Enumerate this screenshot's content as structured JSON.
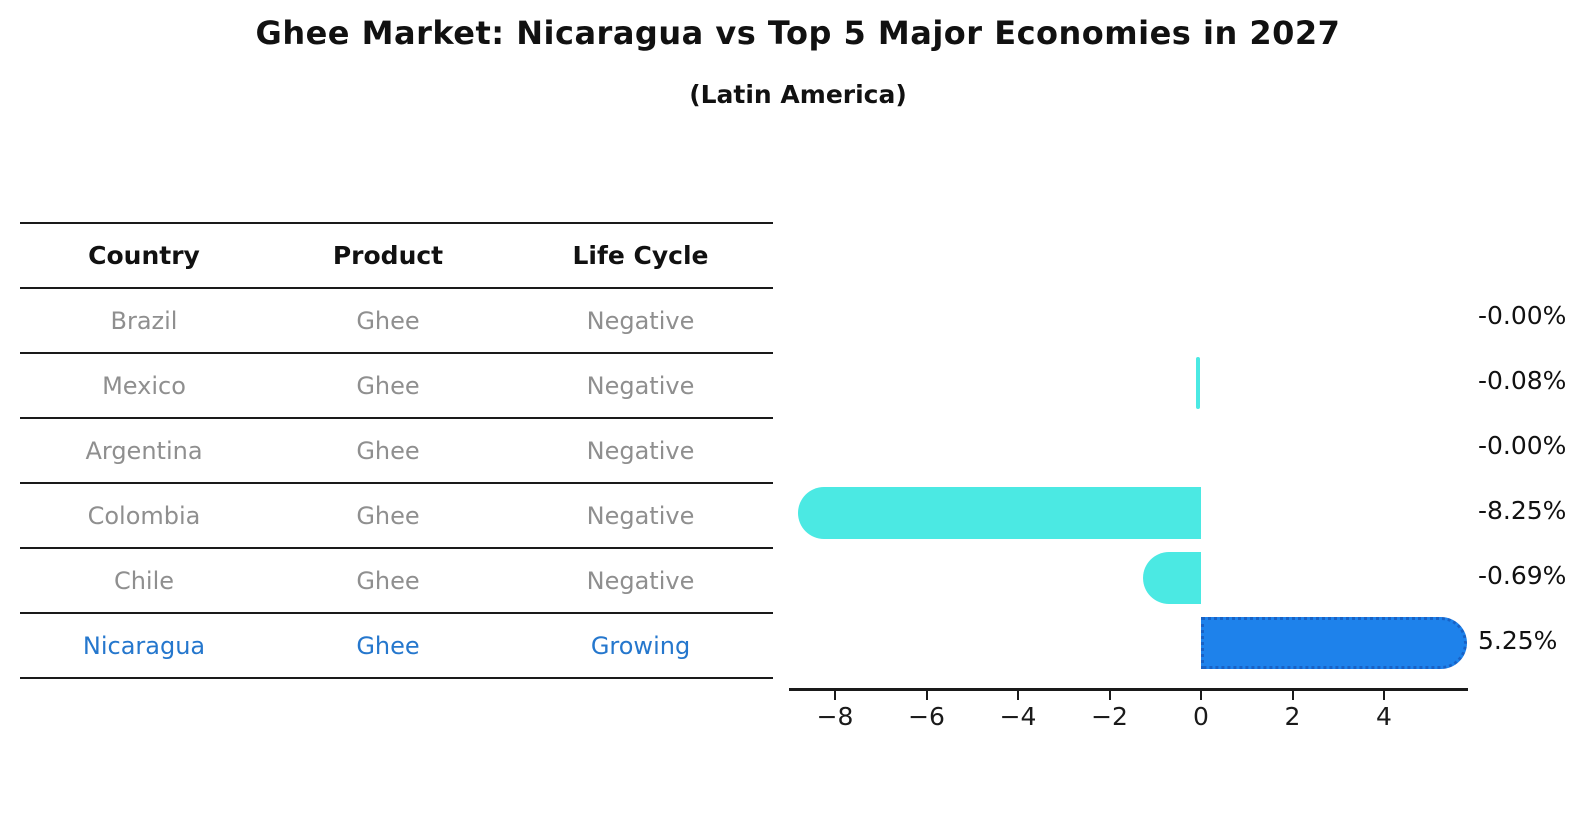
{
  "title": "Ghee Market: Nicaragua vs Top 5 Major Economies in 2027",
  "subtitle": "(Latin America)",
  "table": {
    "headers": [
      "Country",
      "Product",
      "Life Cycle"
    ],
    "rows": [
      {
        "country": "Brazil",
        "product": "Ghee",
        "life_cycle": "Negative",
        "highlight": false
      },
      {
        "country": "Mexico",
        "product": "Ghee",
        "life_cycle": "Negative",
        "highlight": false
      },
      {
        "country": "Argentina",
        "product": "Ghee",
        "life_cycle": "Negative",
        "highlight": false
      },
      {
        "country": "Colombia",
        "product": "Ghee",
        "life_cycle": "Negative",
        "highlight": false
      },
      {
        "country": "Chile",
        "product": "Ghee",
        "life_cycle": "Negative",
        "highlight": false
      },
      {
        "country": "Nicaragua",
        "product": "Ghee",
        "life_cycle": "Growing",
        "highlight": true
      }
    ]
  },
  "chart_data": {
    "type": "bar",
    "orientation": "horizontal",
    "title": "Ghee Market: Nicaragua vs Top 5 Major Economies in 2027",
    "subtitle": "(Latin America)",
    "categories": [
      "Brazil",
      "Mexico",
      "Argentina",
      "Colombia",
      "Chile",
      "Nicaragua"
    ],
    "values": [
      -0.0,
      -0.08,
      -0.0,
      -8.25,
      -0.69,
      5.25
    ],
    "value_labels": [
      "-0.00%",
      "-0.08%",
      "-0.00%",
      "-8.25%",
      "-0.69%",
      "5.25%"
    ],
    "units": "percent CAGR",
    "x_ticks": [
      -8,
      -6,
      -4,
      -2,
      0,
      2,
      4
    ],
    "x_tick_labels": [
      "−8",
      "−6",
      "−4",
      "−2",
      "0",
      "2",
      "4"
    ],
    "xlim": [
      -9.0,
      5.9
    ],
    "grid": false,
    "legend": false,
    "highlight_index": 5,
    "bar_color_default": "#4be9e3",
    "bar_color_highlight": "#1e82eb",
    "highlight_border_color": "#1862c6"
  },
  "colors": {
    "background": "#ffffff",
    "text_dark": "#111111",
    "text_muted": "#8f8f8f",
    "text_highlight": "#2577cd",
    "line": "#1a1a1a"
  }
}
